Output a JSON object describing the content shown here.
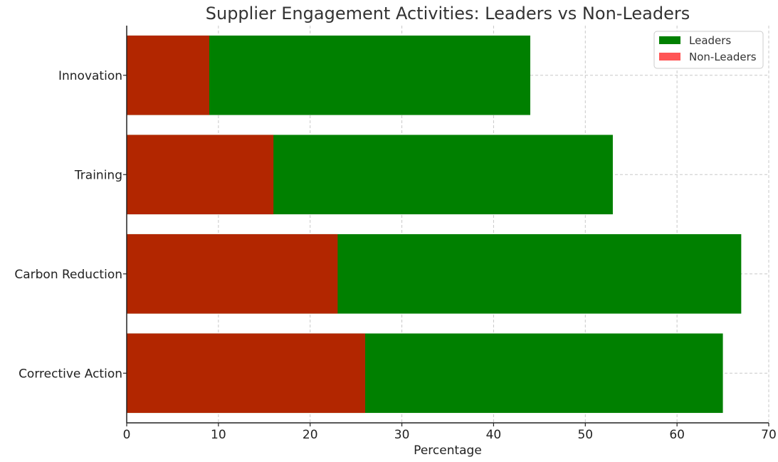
{
  "chart_data": {
    "type": "bar",
    "orientation": "horizontal",
    "stacking": "overlay",
    "title": "Supplier Engagement Activities: Leaders vs Non-Leaders",
    "xlabel": "Percentage",
    "ylabel": "",
    "xlim": [
      0,
      70
    ],
    "xticks": [
      0,
      10,
      20,
      30,
      40,
      50,
      60,
      70
    ],
    "categories": [
      "Corrective Action",
      "Carbon Reduction",
      "Training",
      "Innovation"
    ],
    "series": [
      {
        "name": "Leaders",
        "values": [
          65,
          67,
          53,
          44
        ],
        "color": "#008000"
      },
      {
        "name": "Non-Leaders",
        "values": [
          26,
          23,
          16,
          9
        ],
        "color": "#ff5555",
        "rendered_color": "#b22600"
      }
    ],
    "grid": true,
    "legend_position": "top-right"
  }
}
